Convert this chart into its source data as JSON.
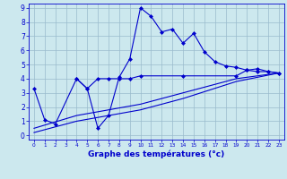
{
  "xlabel": "Graphe des températures (°c)",
  "xlim": [
    -0.5,
    23.5
  ],
  "ylim": [
    -0.3,
    9.3
  ],
  "xticks": [
    0,
    1,
    2,
    3,
    4,
    5,
    6,
    7,
    8,
    9,
    10,
    11,
    12,
    13,
    14,
    15,
    16,
    17,
    18,
    19,
    20,
    21,
    22,
    23
  ],
  "yticks": [
    0,
    1,
    2,
    3,
    4,
    5,
    6,
    7,
    8,
    9
  ],
  "background_color": "#cce8ee",
  "grid_color": "#99bbcc",
  "line_color": "#0000cc",
  "series1_x": [
    0,
    1,
    2,
    4,
    5,
    6,
    7,
    8,
    9,
    10,
    11,
    12,
    13,
    14,
    15,
    16,
    17,
    18,
    19,
    20,
    21,
    22,
    23
  ],
  "series1_y": [
    3.3,
    1.1,
    0.8,
    4.0,
    3.3,
    0.5,
    1.4,
    4.1,
    5.4,
    9.0,
    8.4,
    7.3,
    7.5,
    6.5,
    7.2,
    5.9,
    5.2,
    4.9,
    4.8,
    4.6,
    4.5,
    4.5,
    4.4
  ],
  "series2_x": [
    4,
    5,
    6,
    7,
    8,
    9,
    10,
    14,
    19,
    20,
    21,
    22,
    23
  ],
  "series2_y": [
    4.0,
    3.3,
    4.0,
    4.0,
    4.0,
    4.0,
    4.2,
    4.2,
    4.2,
    4.6,
    4.7,
    4.5,
    4.4
  ],
  "series3_x": [
    0,
    4,
    10,
    14,
    19,
    23
  ],
  "series3_y": [
    0.5,
    1.4,
    2.2,
    3.0,
    4.0,
    4.4
  ],
  "series4_x": [
    0,
    4,
    10,
    14,
    19,
    23
  ],
  "series4_y": [
    0.2,
    1.0,
    1.8,
    2.6,
    3.8,
    4.4
  ],
  "marker": "D",
  "markersize": 2.0,
  "linewidth": 0.8,
  "xlabel_fontsize": 6.5,
  "tick_fontsize_x": 4.2,
  "tick_fontsize_y": 5.5
}
